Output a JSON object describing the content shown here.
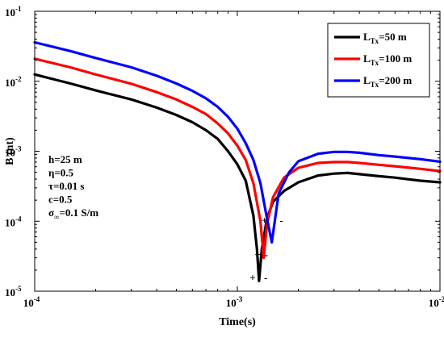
{
  "chart_data": {
    "type": "line",
    "xlabel": "Time(s)",
    "ylabel": "B (nt)",
    "xscale": "log",
    "yscale": "log",
    "xlim": [
      0.0001,
      0.01
    ],
    "ylim": [
      1e-05,
      0.1
    ],
    "grid": false,
    "legend_position": "top-right",
    "x_ticks": [
      {
        "base": "10",
        "exp": "-4"
      },
      {
        "base": "10",
        "exp": "-3"
      },
      {
        "base": "10",
        "exp": "-2"
      }
    ],
    "y_ticks": [
      {
        "base": "10",
        "exp": "-5"
      },
      {
        "base": "10",
        "exp": "-4"
      },
      {
        "base": "10",
        "exp": "-3"
      },
      {
        "base": "10",
        "exp": "-2"
      },
      {
        "base": "10",
        "exp": "-1"
      }
    ],
    "series": [
      {
        "legend_main": "L",
        "legend_sub": "Tx",
        "legend_value": "=50 m",
        "color": "#000000",
        "points": [
          [
            0.0001,
            0.0125
          ],
          [
            0.00015,
            0.0093
          ],
          [
            0.0002,
            0.0074
          ],
          [
            0.0003,
            0.0055
          ],
          [
            0.0004,
            0.0042
          ],
          [
            0.0005,
            0.0033
          ],
          [
            0.0006,
            0.0026
          ],
          [
            0.0007,
            0.002
          ],
          [
            0.0008,
            0.0015
          ],
          [
            0.0009,
            0.001
          ],
          [
            0.001,
            0.00065
          ],
          [
            0.0011,
            0.00038
          ],
          [
            0.0012,
            0.00012
          ],
          [
            0.00125,
            4e-05
          ],
          [
            0.00128,
            1.4e-05
          ],
          [
            0.00132,
            4e-05
          ],
          [
            0.0014,
            0.00011
          ],
          [
            0.0015,
            0.00019
          ],
          [
            0.0017,
            0.00027
          ],
          [
            0.002,
            0.00036
          ],
          [
            0.0025,
            0.00045
          ],
          [
            0.003,
            0.00048
          ],
          [
            0.0035,
            0.00049
          ],
          [
            0.004,
            0.00047
          ],
          [
            0.005,
            0.00044
          ],
          [
            0.006,
            0.00042
          ],
          [
            0.008,
            0.00038
          ],
          [
            0.01,
            0.00036
          ]
        ]
      },
      {
        "legend_main": "L",
        "legend_sub": "Tx",
        "legend_value": "=100 m",
        "color": "#ff0000",
        "points": [
          [
            0.0001,
            0.021
          ],
          [
            0.00015,
            0.0158
          ],
          [
            0.0002,
            0.0125
          ],
          [
            0.0003,
            0.0092
          ],
          [
            0.0004,
            0.007
          ],
          [
            0.0005,
            0.0055
          ],
          [
            0.0006,
            0.0043
          ],
          [
            0.0007,
            0.0034
          ],
          [
            0.0008,
            0.0025
          ],
          [
            0.0009,
            0.0018
          ],
          [
            0.001,
            0.0012
          ],
          [
            0.0011,
            0.00075
          ],
          [
            0.0012,
            0.00035
          ],
          [
            0.0013,
            0.0001
          ],
          [
            0.00135,
            3e-05
          ],
          [
            0.0014,
            9e-05
          ],
          [
            0.0015,
            0.00022
          ],
          [
            0.0017,
            0.00042
          ],
          [
            0.002,
            0.00058
          ],
          [
            0.0025,
            0.00068
          ],
          [
            0.003,
            0.0007
          ],
          [
            0.0035,
            0.0007
          ],
          [
            0.004,
            0.00068
          ],
          [
            0.005,
            0.00064
          ],
          [
            0.006,
            0.00061
          ],
          [
            0.008,
            0.00056
          ],
          [
            0.01,
            0.00052
          ]
        ]
      },
      {
        "legend_main": "L",
        "legend_sub": "Tx",
        "legend_value": "=200 m",
        "color": "#0000ff",
        "points": [
          [
            0.0001,
            0.036
          ],
          [
            0.00015,
            0.027
          ],
          [
            0.0002,
            0.0215
          ],
          [
            0.0003,
            0.0158
          ],
          [
            0.0004,
            0.012
          ],
          [
            0.0005,
            0.0093
          ],
          [
            0.0006,
            0.0073
          ],
          [
            0.0007,
            0.0057
          ],
          [
            0.0008,
            0.0043
          ],
          [
            0.0009,
            0.0031
          ],
          [
            0.001,
            0.0021
          ],
          [
            0.0011,
            0.0013
          ],
          [
            0.0012,
            0.00075
          ],
          [
            0.0013,
            0.00035
          ],
          [
            0.0014,
            0.00011
          ],
          [
            0.00148,
            5e-05
          ],
          [
            0.0016,
            0.00025
          ],
          [
            0.0018,
            0.0005
          ],
          [
            0.002,
            0.00072
          ],
          [
            0.0025,
            0.00092
          ],
          [
            0.003,
            0.00098
          ],
          [
            0.0035,
            0.00098
          ],
          [
            0.004,
            0.00095
          ],
          [
            0.005,
            0.00088
          ],
          [
            0.006,
            0.00084
          ],
          [
            0.008,
            0.00077
          ],
          [
            0.01,
            0.00071
          ]
        ]
      }
    ],
    "annotations": {
      "params": [
        {
          "text": "h=25 m"
        },
        {
          "text": "η=0.5"
        },
        {
          "text": "τ=0.01 s"
        },
        {
          "text": "c=0.5"
        },
        {
          "text": "σ",
          "sub": "∞",
          "text_after": "=0.1 S/m"
        }
      ],
      "signs": [
        {
          "text": "+",
          "x": 0.00119,
          "y": 1.55e-05
        },
        {
          "text": "-",
          "x": 0.00138,
          "y": 1.55e-05
        },
        {
          "text": "+",
          "x": 0.00126,
          "y": 3.3e-05
        },
        {
          "text": "-",
          "x": 0.00139,
          "y": 3.3e-05
        },
        {
          "text": "+",
          "x": 0.00136,
          "y": 0.000102
        },
        {
          "text": "-",
          "x": 0.00165,
          "y": 0.000102
        }
      ]
    }
  }
}
